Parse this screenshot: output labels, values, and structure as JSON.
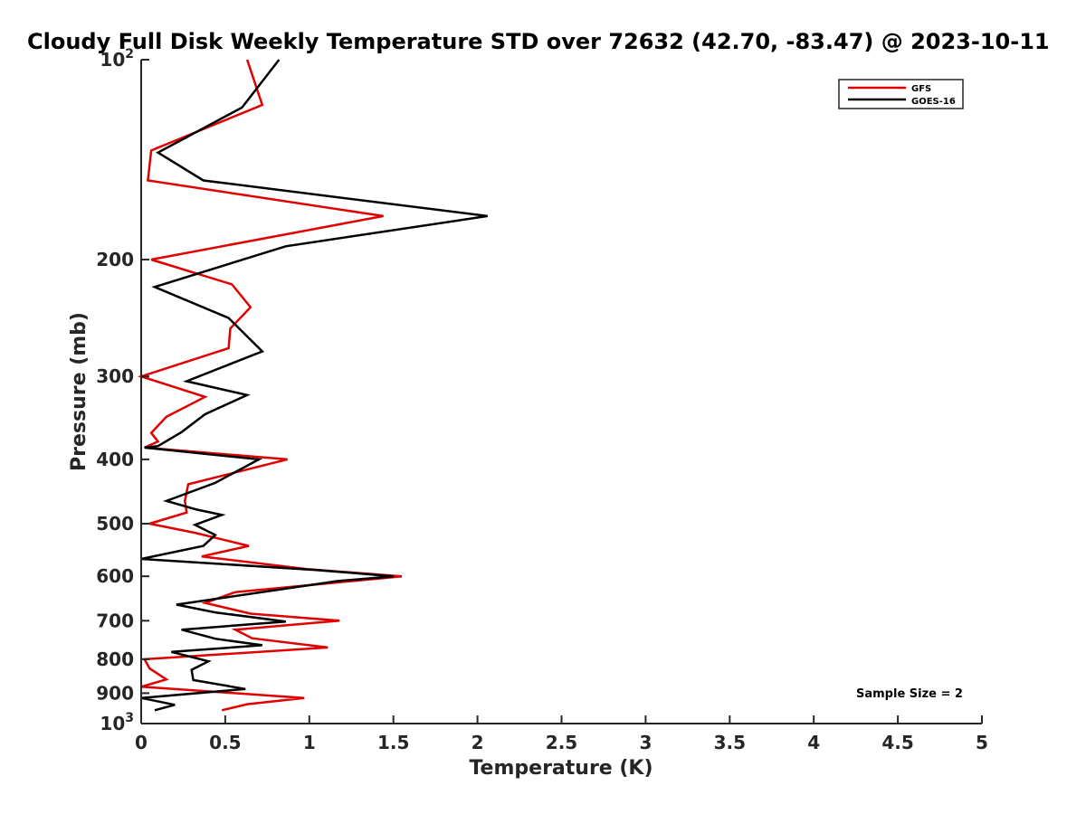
{
  "chart_data": {
    "type": "line",
    "title": "Cloudy Full Disk Weekly Temperature STD over 72632 (42.70, -83.47) @ 2023-10-11",
    "xlabel": "Temperature (K)",
    "ylabel": "Pressure (mb)",
    "xlim": [
      0,
      5
    ],
    "ylim": [
      100,
      1000
    ],
    "yscale": "log",
    "y_reversed": true,
    "grid": false,
    "legend_position": "top-right",
    "x_ticks": [
      0,
      0.5,
      1,
      1.5,
      2,
      2.5,
      3,
      3.5,
      4,
      4.5,
      5
    ],
    "x_tick_labels": [
      "0",
      "0.5",
      "1",
      "1.5",
      "2",
      "2.5",
      "3",
      "3.5",
      "4",
      "4.5",
      "5"
    ],
    "y_ticks": [
      100,
      200,
      300,
      400,
      500,
      600,
      700,
      800,
      900,
      1000
    ],
    "y_tick_labels": [
      "10^2",
      "200",
      "300",
      "400",
      "500",
      "600",
      "700",
      "800",
      "900",
      "10^3"
    ],
    "annotation": "Sample Size = 2",
    "series": [
      {
        "name": "GFS",
        "color": "#e00000",
        "points": [
          {
            "x": 0.63,
            "y": 100
          },
          {
            "x": 0.72,
            "y": 117
          },
          {
            "x": 0.06,
            "y": 137
          },
          {
            "x": 0.04,
            "y": 152
          },
          {
            "x": 1.44,
            "y": 172
          },
          {
            "x": 0.06,
            "y": 200
          },
          {
            "x": 0.54,
            "y": 218
          },
          {
            "x": 0.65,
            "y": 236
          },
          {
            "x": 0.53,
            "y": 254
          },
          {
            "x": 0.52,
            "y": 272
          },
          {
            "x": 0.0,
            "y": 300
          },
          {
            "x": 0.38,
            "y": 322
          },
          {
            "x": 0.15,
            "y": 345
          },
          {
            "x": 0.06,
            "y": 365
          },
          {
            "x": 0.1,
            "y": 376
          },
          {
            "x": 0.02,
            "y": 384
          },
          {
            "x": 0.87,
            "y": 400
          },
          {
            "x": 0.28,
            "y": 436
          },
          {
            "x": 0.26,
            "y": 462
          },
          {
            "x": 0.27,
            "y": 481
          },
          {
            "x": 0.05,
            "y": 500
          },
          {
            "x": 0.32,
            "y": 516
          },
          {
            "x": 0.64,
            "y": 540
          },
          {
            "x": 0.36,
            "y": 560
          },
          {
            "x": 0.98,
            "y": 585
          },
          {
            "x": 1.55,
            "y": 600
          },
          {
            "x": 0.56,
            "y": 634
          },
          {
            "x": 0.38,
            "y": 658
          },
          {
            "x": 0.65,
            "y": 683
          },
          {
            "x": 1.18,
            "y": 700
          },
          {
            "x": 0.56,
            "y": 722
          },
          {
            "x": 0.66,
            "y": 744
          },
          {
            "x": 1.11,
            "y": 768
          },
          {
            "x": 0.02,
            "y": 800
          },
          {
            "x": 0.05,
            "y": 826
          },
          {
            "x": 0.15,
            "y": 858
          },
          {
            "x": 0.0,
            "y": 880
          },
          {
            "x": 0.97,
            "y": 915
          },
          {
            "x": 0.63,
            "y": 935
          },
          {
            "x": 0.48,
            "y": 955
          }
        ]
      },
      {
        "name": "GOES-16",
        "color": "#000000",
        "points": [
          {
            "x": 0.82,
            "y": 100
          },
          {
            "x": 0.6,
            "y": 118
          },
          {
            "x": 0.1,
            "y": 138
          },
          {
            "x": 0.37,
            "y": 152
          },
          {
            "x": 2.06,
            "y": 172
          },
          {
            "x": 0.86,
            "y": 191
          },
          {
            "x": 0.08,
            "y": 220
          },
          {
            "x": 0.52,
            "y": 245
          },
          {
            "x": 0.72,
            "y": 275
          },
          {
            "x": 0.27,
            "y": 305
          },
          {
            "x": 0.63,
            "y": 320
          },
          {
            "x": 0.38,
            "y": 342
          },
          {
            "x": 0.24,
            "y": 364
          },
          {
            "x": 0.1,
            "y": 382
          },
          {
            "x": 0.02,
            "y": 384
          },
          {
            "x": 0.7,
            "y": 400
          },
          {
            "x": 0.44,
            "y": 434
          },
          {
            "x": 0.15,
            "y": 462
          },
          {
            "x": 0.33,
            "y": 476
          },
          {
            "x": 0.48,
            "y": 485
          },
          {
            "x": 0.32,
            "y": 502
          },
          {
            "x": 0.44,
            "y": 520
          },
          {
            "x": 0.37,
            "y": 540
          },
          {
            "x": 0.0,
            "y": 565
          },
          {
            "x": 1.04,
            "y": 587
          },
          {
            "x": 1.5,
            "y": 600
          },
          {
            "x": 1.17,
            "y": 610
          },
          {
            "x": 0.21,
            "y": 662
          },
          {
            "x": 0.44,
            "y": 680
          },
          {
            "x": 0.86,
            "y": 702
          },
          {
            "x": 0.24,
            "y": 722
          },
          {
            "x": 0.44,
            "y": 745
          },
          {
            "x": 0.72,
            "y": 762
          },
          {
            "x": 0.18,
            "y": 780
          },
          {
            "x": 0.4,
            "y": 806
          },
          {
            "x": 0.3,
            "y": 830
          },
          {
            "x": 0.31,
            "y": 860
          },
          {
            "x": 0.62,
            "y": 887
          },
          {
            "x": 0.0,
            "y": 915
          },
          {
            "x": 0.2,
            "y": 937
          },
          {
            "x": 0.08,
            "y": 955
          }
        ]
      }
    ]
  }
}
